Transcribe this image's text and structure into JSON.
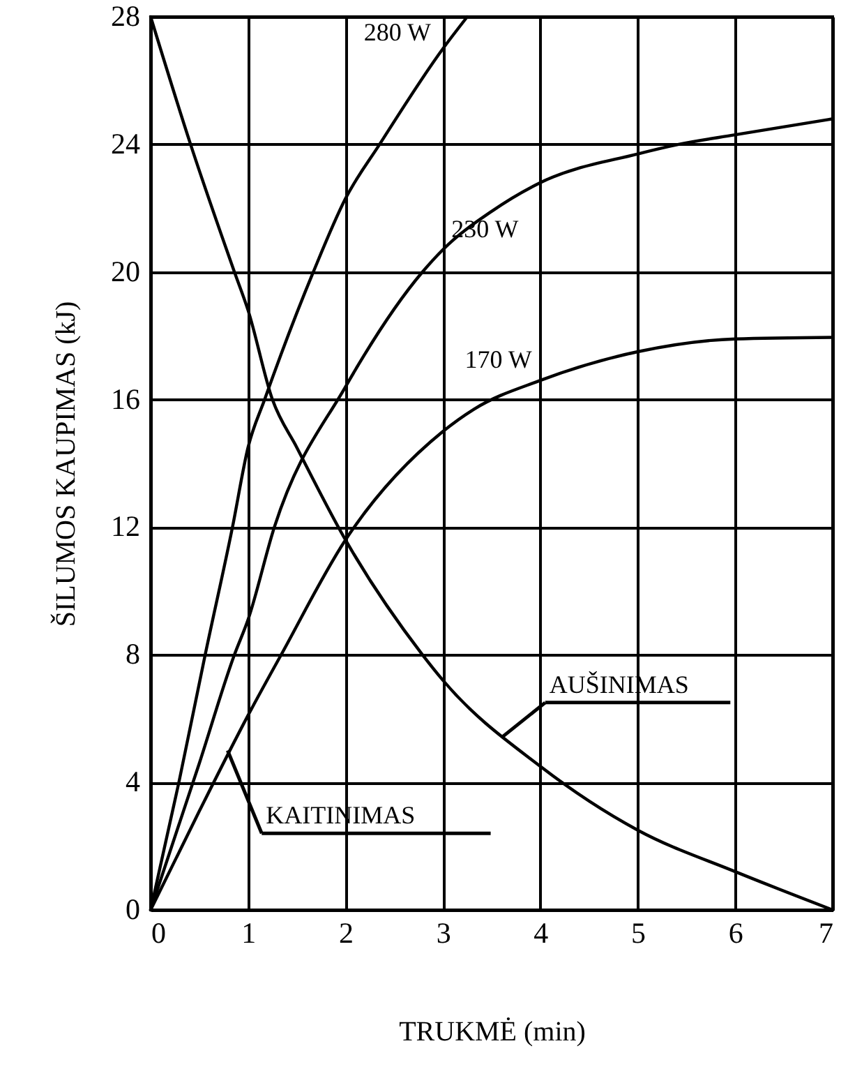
{
  "chart_data": {
    "type": "line",
    "xlabel": "TRUKMĖ (min)",
    "ylabel": "ŠILUMOS KAUPIMAS (kJ)",
    "xlim": [
      0,
      7
    ],
    "xticks": [
      0,
      1,
      2,
      3,
      4,
      5,
      6,
      7
    ],
    "ylim": [
      0,
      28
    ],
    "yticks": [
      0,
      4,
      8,
      12,
      16,
      20,
      24,
      28
    ],
    "grid": true,
    "line_style": "solid",
    "marker": "none",
    "series": [
      {
        "name": "280 W",
        "color": "#000000",
        "x": [
          0,
          0.29,
          0.56,
          0.84,
          1,
          1.17,
          1.67,
          2,
          2.35,
          3,
          3.25
        ],
        "values": [
          0,
          4,
          8,
          12,
          14.5,
          16,
          20,
          22.3,
          24,
          27,
          28
        ]
      },
      {
        "name": "230 W",
        "color": "#000000",
        "x": [
          0,
          0.5,
          0.86,
          1,
          1.27,
          2,
          2.79,
          3,
          3.5,
          4,
          5,
          5.42,
          6,
          7
        ],
        "values": [
          0,
          4.6,
          8,
          9.1,
          12,
          16.4,
          20,
          20.7,
          21.9,
          22.8,
          23.7,
          24,
          24.3,
          24.8
        ]
      },
      {
        "name": "170 W",
        "color": "#000000",
        "x": [
          0,
          0.5,
          1,
          1.34,
          2,
          3,
          3.32,
          4,
          5,
          6,
          7
        ],
        "values": [
          0,
          3.1,
          6.1,
          8,
          11.6,
          15,
          15.7,
          16.6,
          17.5,
          17.9,
          17.95
        ]
      },
      {
        "color": "#000000",
        "x": [
          0,
          0.41,
          0.86,
          1,
          1.25,
          1.5,
          2,
          2.79,
          3,
          4,
          5,
          6,
          7
        ],
        "values": [
          28,
          24,
          20,
          18.8,
          16,
          14.5,
          11.6,
          8,
          7.2,
          4.5,
          2.5,
          1.2,
          0
        ]
      }
    ],
    "annotations": [
      {
        "text": "KAITINIMAS",
        "x": 0.79,
        "y": 5
      },
      {
        "text": "AUŠINIMAS",
        "x": 3.6,
        "y": 5.4
      }
    ]
  }
}
